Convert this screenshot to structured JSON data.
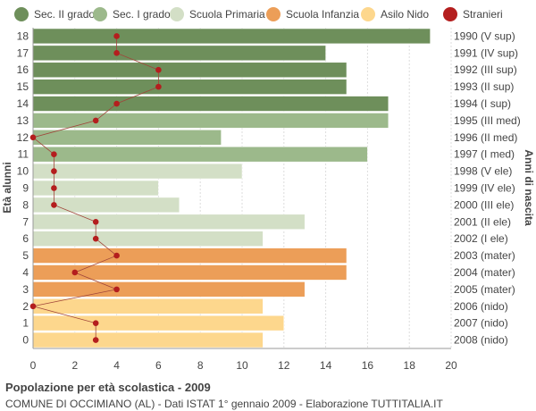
{
  "chart_data": {
    "type": "bar",
    "orientation": "horizontal",
    "title": "Popolazione per età scolastica - 2009",
    "subtitle": "COMUNE DI OCCIMIANO (AL) - Dati ISTAT 1° gennaio 2009 - Elaborazione TUTTITALIA.IT",
    "ylabel_left": "Età alunni",
    "ylabel_right": "Anni di nascita",
    "xlim": [
      0,
      20
    ],
    "x_ticks": [
      0,
      2,
      4,
      6,
      8,
      10,
      12,
      14,
      16,
      18,
      20
    ],
    "grid": true,
    "legend_position": "top",
    "legend": [
      {
        "name": "Sec. II grado",
        "color": "#6e8f5b"
      },
      {
        "name": "Sec. I grado",
        "color": "#9cb98b"
      },
      {
        "name": "Scuola Primaria",
        "color": "#d3dfc6"
      },
      {
        "name": "Scuola Infanzia",
        "color": "#ec9e58"
      },
      {
        "name": "Asilo Nido",
        "color": "#fdd78d"
      },
      {
        "name": "Stranieri",
        "color": "#b41e1e"
      }
    ],
    "rows": [
      {
        "age": "18",
        "birth": "1990 (V sup)",
        "value": 19,
        "stranieri": 4,
        "group": 0
      },
      {
        "age": "17",
        "birth": "1991 (IV sup)",
        "value": 14,
        "stranieri": 4,
        "group": 0
      },
      {
        "age": "16",
        "birth": "1992 (III sup)",
        "value": 15,
        "stranieri": 6,
        "group": 0
      },
      {
        "age": "15",
        "birth": "1993 (II sup)",
        "value": 15,
        "stranieri": 6,
        "group": 0
      },
      {
        "age": "14",
        "birth": "1994 (I sup)",
        "value": 17,
        "stranieri": 4,
        "group": 0
      },
      {
        "age": "13",
        "birth": "1995 (III med)",
        "value": 17,
        "stranieri": 3,
        "group": 1
      },
      {
        "age": "12",
        "birth": "1996 (II med)",
        "value": 9,
        "stranieri": 0,
        "group": 1
      },
      {
        "age": "11",
        "birth": "1997 (I med)",
        "value": 16,
        "stranieri": 1,
        "group": 1
      },
      {
        "age": "10",
        "birth": "1998 (V ele)",
        "value": 10,
        "stranieri": 1,
        "group": 2
      },
      {
        "age": "9",
        "birth": "1999 (IV ele)",
        "value": 6,
        "stranieri": 1,
        "group": 2
      },
      {
        "age": "8",
        "birth": "2000 (III ele)",
        "value": 7,
        "stranieri": 1,
        "group": 2
      },
      {
        "age": "7",
        "birth": "2001 (II ele)",
        "value": 13,
        "stranieri": 3,
        "group": 2
      },
      {
        "age": "6",
        "birth": "2002 (I ele)",
        "value": 11,
        "stranieri": 3,
        "group": 2
      },
      {
        "age": "5",
        "birth": "2003 (mater)",
        "value": 15,
        "stranieri": 4,
        "group": 3
      },
      {
        "age": "4",
        "birth": "2004 (mater)",
        "value": 15,
        "stranieri": 2,
        "group": 3
      },
      {
        "age": "3",
        "birth": "2005 (mater)",
        "value": 13,
        "stranieri": 4,
        "group": 3
      },
      {
        "age": "2",
        "birth": "2006 (nido)",
        "value": 11,
        "stranieri": 0,
        "group": 4
      },
      {
        "age": "1",
        "birth": "2007 (nido)",
        "value": 12,
        "stranieri": 3,
        "group": 4
      },
      {
        "age": "0",
        "birth": "2008 (nido)",
        "value": 11,
        "stranieri": 3,
        "group": 4
      }
    ]
  }
}
